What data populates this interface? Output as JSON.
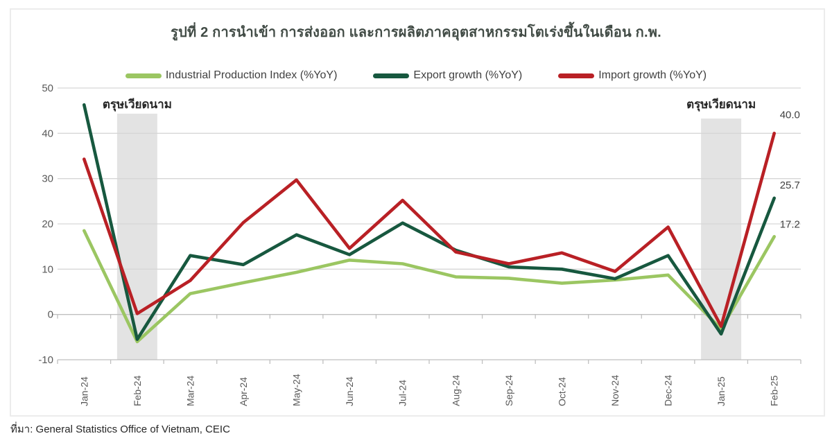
{
  "title": "รูปที่ 2 การนำเข้า การส่งออก และการผลิตภาคอุตสาหกรรมโตเร่งขึ้นในเดือน ก.พ.",
  "source": "ที่มา: General Statistics Office of Vietnam, CEIC",
  "colors": {
    "ipi": "#9bc662",
    "export": "#17583f",
    "import": "#b92025",
    "band": "#e3e3e3",
    "grid": "#d6d6d6",
    "axis": "#bfbfbf",
    "axis_text": "#595959",
    "annotation_text": "#262626",
    "end_label_text": "#404040"
  },
  "annotations": {
    "tet_label_left": "ตรุษเวียดนาม",
    "tet_label_right": "ตรุษเวียดนาม",
    "end_labels": [
      "17.2",
      "25.7",
      "40.0"
    ]
  },
  "chart_data": {
    "type": "line",
    "categories": [
      "Jan-24",
      "Feb-24",
      "Mar-24",
      "Apr-24",
      "May-24",
      "Jun-24",
      "Jul-24",
      "Aug-24",
      "Sep-24",
      "Oct-24",
      "Nov-24",
      "Dec-24",
      "Jan-25",
      "Feb-25"
    ],
    "series": [
      {
        "name": "Industrial Production Index (%YoY)",
        "color_key": "ipi",
        "values": [
          18.5,
          -6.0,
          4.6,
          7.0,
          9.3,
          12.0,
          11.2,
          8.3,
          8.0,
          6.9,
          7.6,
          8.7,
          -3.2,
          17.2
        ]
      },
      {
        "name": "Export growth (%YoY)",
        "color_key": "export",
        "values": [
          46.3,
          -5.5,
          13.0,
          11.0,
          17.6,
          13.2,
          20.2,
          14.2,
          10.5,
          10.0,
          7.9,
          13.0,
          -4.3,
          25.7
        ]
      },
      {
        "name": "Import growth (%YoY)",
        "color_key": "import",
        "values": [
          34.3,
          0.2,
          7.5,
          20.3,
          29.7,
          14.6,
          25.2,
          13.8,
          11.2,
          13.6,
          9.5,
          19.3,
          -2.6,
          40.0
        ]
      }
    ],
    "ylim": [
      -10,
      50
    ],
    "ytick_step": 10,
    "yticks": [
      50,
      40,
      30,
      20,
      10,
      0,
      -10
    ],
    "grid": true,
    "legend_position": "top",
    "shaded_bands": [
      {
        "label": "ตรุษเวียดนาม",
        "center_category": "Feb-24",
        "category_index": 1
      },
      {
        "label": "ตรุษเวียดนาม",
        "center_category": "Jan-25",
        "category_index": 12
      }
    ],
    "end_value_labels": {
      "import": "40.0",
      "export": "25.7",
      "ipi": "17.2"
    }
  }
}
